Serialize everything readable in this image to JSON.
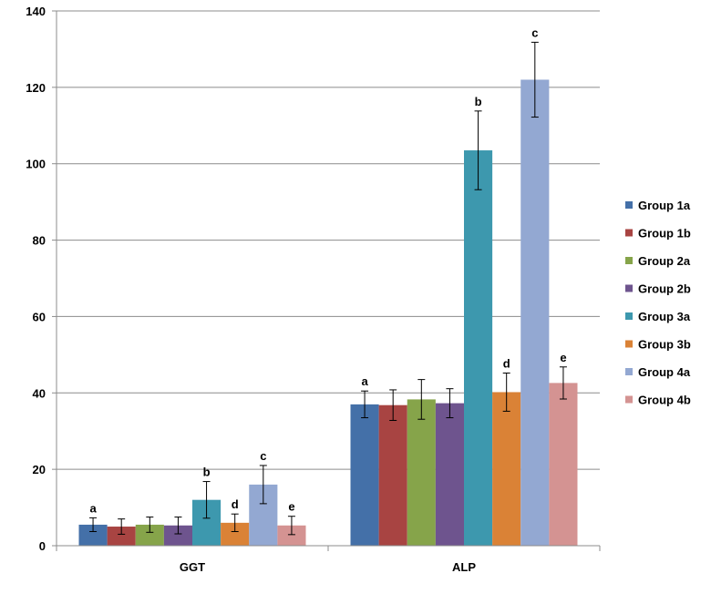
{
  "chart_data": {
    "type": "bar",
    "categories": [
      "GGT",
      "ALP"
    ],
    "ylim": [
      0,
      140
    ],
    "yticks": [
      0,
      20,
      40,
      60,
      80,
      100,
      120,
      140
    ],
    "grid": true,
    "legend_position": "right",
    "series": [
      {
        "name": "Group 1a",
        "color": "#4470a8",
        "values": [
          5.5,
          37.0
        ],
        "errors": [
          1.8,
          3.5
        ],
        "labels": [
          "a",
          "a"
        ]
      },
      {
        "name": "Group 1b",
        "color": "#a84442",
        "values": [
          5.0,
          36.8
        ],
        "errors": [
          2.0,
          4.0
        ],
        "labels": [
          "",
          ""
        ]
      },
      {
        "name": "Group 2a",
        "color": "#86a44a",
        "values": [
          5.5,
          38.3
        ],
        "errors": [
          2.0,
          5.2
        ],
        "labels": [
          "",
          ""
        ]
      },
      {
        "name": "Group 2b",
        "color": "#6e548e",
        "values": [
          5.3,
          37.3
        ],
        "errors": [
          2.2,
          3.8
        ],
        "labels": [
          "",
          ""
        ]
      },
      {
        "name": "Group 3a",
        "color": "#3d98ae",
        "values": [
          12.0,
          103.5
        ],
        "errors": [
          4.8,
          10.3
        ],
        "labels": [
          "b",
          "b"
        ]
      },
      {
        "name": "Group 3b",
        "color": "#da8236",
        "values": [
          6.0,
          40.2
        ],
        "errors": [
          2.3,
          5.0
        ],
        "labels": [
          "d",
          "d"
        ]
      },
      {
        "name": "Group 4a",
        "color": "#93a8d2",
        "values": [
          16.0,
          122.0
        ],
        "errors": [
          5.0,
          9.8
        ],
        "labels": [
          "c",
          "c"
        ]
      },
      {
        "name": "Group 4b",
        "color": "#d49392",
        "values": [
          5.3,
          42.6
        ],
        "errors": [
          2.4,
          4.2
        ],
        "labels": [
          "e",
          "e"
        ]
      }
    ]
  }
}
